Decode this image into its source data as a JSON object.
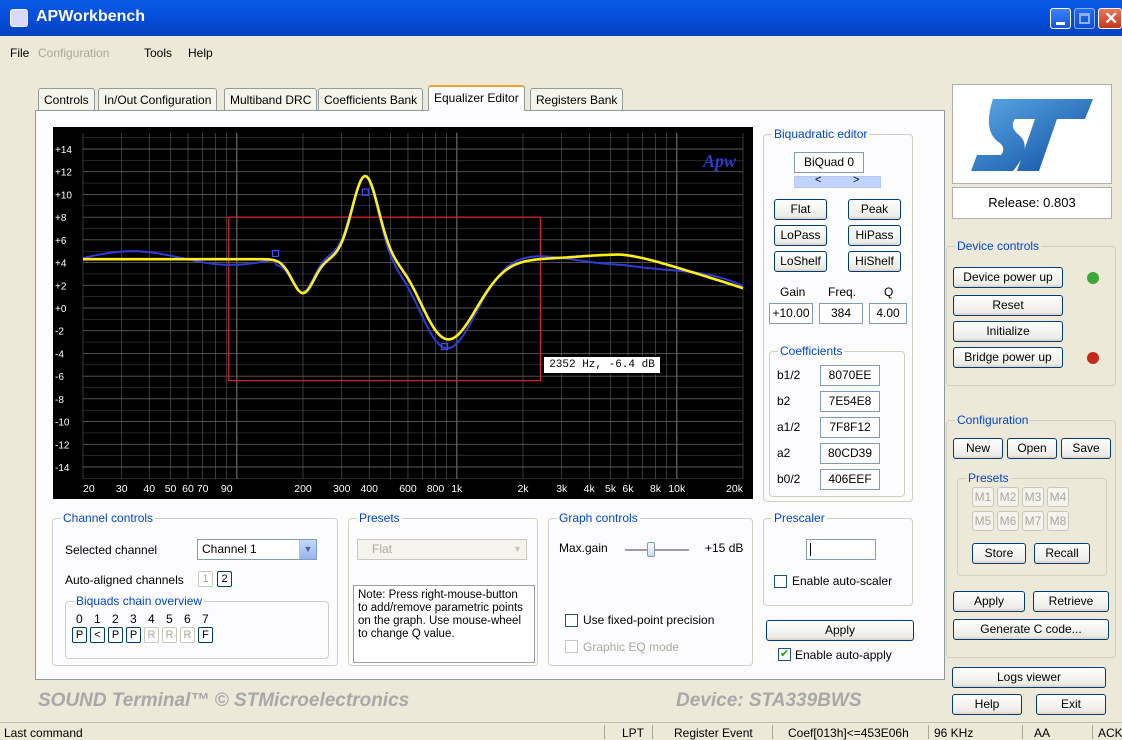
{
  "window": {
    "title": "APWorkbench"
  },
  "menu": [
    "File",
    "Configuration",
    "Tools",
    "Help"
  ],
  "tabs": [
    "Controls",
    "In/Out Configuration",
    "Multiband DRC",
    "Coefficients Bank",
    "Equalizer Editor",
    "Registers Bank"
  ],
  "graph": {
    "watermark": "Apw",
    "y_ticks": [
      "+14",
      "+12",
      "+10",
      "+8",
      "+6",
      "+4",
      "+2",
      "+0",
      "-2",
      "-4",
      "-6",
      "-8",
      "-10",
      "-12",
      "-14"
    ],
    "x_ticks": [
      {
        "f": 20,
        "l": "20"
      },
      {
        "f": 30,
        "l": "30"
      },
      {
        "f": 40,
        "l": "40"
      },
      {
        "f": 50,
        "l": "50"
      },
      {
        "f": 60,
        "l": "60"
      },
      {
        "f": 70,
        "l": "70"
      },
      {
        "f": 90,
        "l": "90"
      },
      {
        "f": 200,
        "l": "200"
      },
      {
        "f": 300,
        "l": "300"
      },
      {
        "f": 400,
        "l": "400"
      },
      {
        "f": 600,
        "l": "600"
      },
      {
        "f": 800,
        "l": "800"
      },
      {
        "f": 1000,
        "l": "1k"
      },
      {
        "f": 2000,
        "l": "2k"
      },
      {
        "f": 3000,
        "l": "3k"
      },
      {
        "f": 4000,
        "l": "4k"
      },
      {
        "f": 5000,
        "l": "5k"
      },
      {
        "f": 6000,
        "l": "6k"
      },
      {
        "f": 8000,
        "l": "8k"
      },
      {
        "f": 10000,
        "l": "10k"
      },
      {
        "f": 20000,
        "l": "20k"
      }
    ],
    "tooltip": "2352 Hz, -6.4 dB",
    "curve_color": "#ffef1a",
    "band_color": "#2e3bd8",
    "rect_color": "#d9252c"
  },
  "biquad": {
    "title": "Biquadratic editor",
    "name": "BiQuad 0",
    "prev": "<",
    "next": ">",
    "types": [
      "Flat",
      "Peak",
      "LoPass",
      "HiPass",
      "LoShelf",
      "HiShelf"
    ],
    "gain_label": "Gain",
    "freq_label": "Freq.",
    "q_label": "Q",
    "gain": "+10.00",
    "freq": "384",
    "q": "4.00",
    "coef_title": "Coefficients",
    "coefficients": [
      {
        "name": "b1/2",
        "value": "8070EE"
      },
      {
        "name": "b2",
        "value": "7E54E8"
      },
      {
        "name": "a1/2",
        "value": "7F8F12"
      },
      {
        "name": "a2",
        "value": "80CD39"
      },
      {
        "name": "b0/2",
        "value": "406EEF"
      }
    ]
  },
  "channel": {
    "title": "Channel controls",
    "selected_label": "Selected channel",
    "selected": "Channel 1",
    "auto_label": "Auto-aligned channels",
    "auto_buttons": [
      "1",
      "2"
    ],
    "chain_title": "Biquads chain overview",
    "chain_numbers": [
      "0",
      "1",
      "2",
      "3",
      "4",
      "5",
      "6",
      "7"
    ],
    "chain_letters": [
      "P",
      "<",
      "P",
      "P",
      "R",
      "R",
      "R",
      "F"
    ]
  },
  "presets": {
    "title": "Presets",
    "selected": "Flat",
    "note": "Note: Press right-mouse-button to add/remove parametric points on the graph. Use mouse-wheel to change Q value."
  },
  "graph_controls": {
    "title": "Graph controls",
    "max_gain_label": "Max.gain",
    "max_gain_value": "+15 dB",
    "max_gain_level": 0.4,
    "fixed_point": "Use fixed-point precision",
    "graphic_eq": "Graphic EQ mode"
  },
  "prescaler": {
    "title": "Prescaler",
    "value": "",
    "auto_scaler": "Enable auto-scaler"
  },
  "apply": {
    "label": "Apply",
    "auto_apply": "Enable auto-apply"
  },
  "release": "Release:  0.803",
  "device_controls": {
    "title": "Device controls",
    "power_up": "Device power up",
    "reset": "Reset",
    "initialize": "Initialize",
    "bridge": "Bridge power up",
    "led_power": "#3ca83a",
    "led_bridge": "#c4281c"
  },
  "configuration": {
    "title": "Configuration",
    "new": "New",
    "open": "Open",
    "save": "Save",
    "presets_title": "Presets",
    "preset_buttons": [
      "M1",
      "M2",
      "M3",
      "M4",
      "M5",
      "M6",
      "M7",
      "M8"
    ],
    "store": "Store",
    "recall": "Recall",
    "apply": "Apply",
    "retrieve": "Retrieve",
    "generate": "Generate C code..."
  },
  "bottom": {
    "logs": "Logs viewer",
    "help": "Help",
    "exit": "Exit"
  },
  "footer": {
    "left": "SOUND Terminal™ © STMicroelectronics",
    "right": "Device: STA339BWS"
  },
  "status": {
    "last": "Last command",
    "lpt": "LPT",
    "event": "Register Event",
    "coef": "Coef[013h]<=453E06h",
    "rate": "96 KHz",
    "aa": "AA",
    "ack": "ACK"
  }
}
